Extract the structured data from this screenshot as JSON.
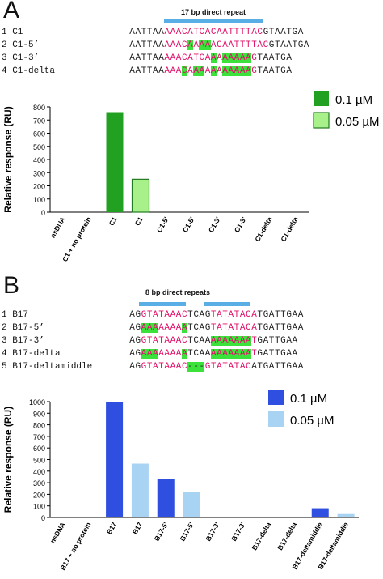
{
  "panelA": {
    "letter": "A",
    "repeat_label": "17 bp direct repeat",
    "sequences": [
      {
        "num": "1",
        "name": "C1",
        "seq": "AATTAAAAACATCACAATTTTACGTAATGA",
        "red": [
          6,
          22
        ],
        "hl": []
      },
      {
        "num": "2",
        "name": "C1-5’",
        "seq": "AATTAAAAACAAAAACAATTTTACGTAATGA",
        "red": [
          6,
          23
        ],
        "hl": [
          10,
          12,
          13
        ]
      },
      {
        "num": "3",
        "name": "C1-3’",
        "seq": "AATTAAAAACATCAAAAAAAAGTAATGA",
        "red": [
          6,
          21
        ],
        "hl": [
          14,
          16,
          17,
          18,
          19,
          20
        ]
      },
      {
        "num": "4",
        "name": "C1-delta",
        "seq": "AATTAAAAACAAAAAAAAAAAGTAATGA",
        "red": [
          6,
          21
        ],
        "hl": [
          9,
          11,
          12,
          14,
          16,
          17,
          18,
          19,
          20
        ]
      }
    ]
  },
  "panelB": {
    "letter": "B",
    "repeat_label": "8 bp direct repeats",
    "sequences": [
      {
        "num": "1",
        "name": "B17",
        "seq": "AGGTATAAACTCAGTATATACATGATTGAA",
        "red": [
          2,
          9,
          14,
          21
        ],
        "hl": []
      },
      {
        "num": "2",
        "name": "B17-5’",
        "seq": "AGAAAAAAAATCAGTATATACATGATTGAA",
        "red": [
          2,
          9,
          14,
          21
        ],
        "hl": [
          2,
          3,
          4,
          9
        ]
      },
      {
        "num": "3",
        "name": "B17-3’",
        "seq": "AGGTATAAACTCAAAAAAAAATGATTGAA",
        "red": [
          2,
          9,
          14,
          21
        ],
        "hl": [
          14,
          15,
          16,
          17,
          18,
          19,
          20
        ]
      },
      {
        "num": "4",
        "name": "B17-delta",
        "seq": "AGAAAAAAAATCAAAAAAAAATGATTGAA",
        "red": [
          2,
          9,
          14,
          21
        ],
        "hl": [
          2,
          3,
          4,
          9,
          14,
          15,
          16,
          17,
          18,
          19,
          20
        ]
      },
      {
        "num": "5",
        "name": "B17-deltamiddle",
        "seq": "AGGTATAAAC---GTATATACATGATTGAA",
        "red": [
          2,
          9,
          13,
          20
        ],
        "hl": [
          10,
          11,
          12
        ]
      }
    ]
  },
  "chart_data": [
    {
      "type": "bar",
      "ylabel": "Relative response (RU)",
      "ylim": [
        0,
        800
      ],
      "yticks": [
        0,
        100,
        200,
        300,
        400,
        500,
        600,
        700,
        800
      ],
      "categories": [
        "nsDNA",
        "C1 + no protein",
        "C1",
        "C1",
        "C1-5'",
        "C1-5'",
        "C1-3'",
        "C1-3'",
        "C1-delta",
        "C1-delta"
      ],
      "values": [
        0,
        0,
        760,
        250,
        0,
        0,
        0,
        0,
        0,
        0
      ],
      "series": [
        {
          "name": "0.1 µM",
          "color": "#22a022"
        },
        {
          "name": "0.05 µM",
          "color": "#a8f08a"
        }
      ],
      "bar_series": [
        0,
        0,
        0,
        1,
        0,
        1,
        0,
        1,
        0,
        1
      ],
      "legend": "top-right"
    },
    {
      "type": "bar",
      "ylabel": "Relative response (RU)",
      "ylim": [
        0,
        1000
      ],
      "yticks": [
        0,
        100,
        200,
        300,
        400,
        500,
        600,
        700,
        800,
        900,
        1000
      ],
      "categories": [
        "nsDNA",
        "B17 + no protein",
        "B17",
        "B17",
        "B17-5'",
        "B17-5'",
        "B17-3'",
        "B17-3'",
        "B17-delta",
        "B17-delta",
        "B17-deltamiddle",
        "B17-deltamiddle"
      ],
      "values": [
        0,
        0,
        1000,
        465,
        330,
        220,
        0,
        0,
        0,
        0,
        80,
        30
      ],
      "series": [
        {
          "name": "0.1 µM",
          "color": "#2f4fe0"
        },
        {
          "name": "0.05 µM",
          "color": "#a9d3f3"
        }
      ],
      "bar_series": [
        0,
        0,
        0,
        1,
        0,
        1,
        0,
        1,
        0,
        1,
        0,
        1
      ],
      "legend": "top-right"
    }
  ]
}
